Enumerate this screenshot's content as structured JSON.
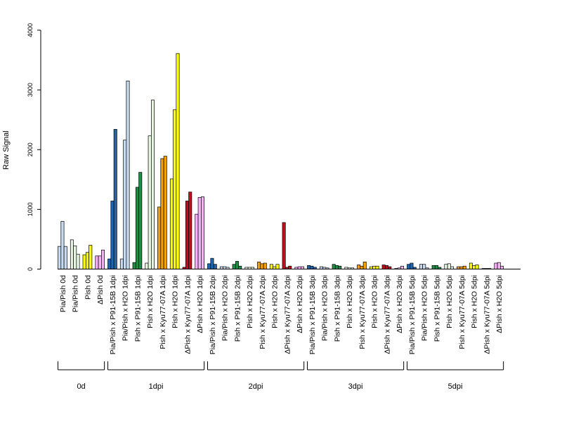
{
  "chart_data": {
    "type": "bar",
    "ylabel": "Raw Signal",
    "ylim": [
      0,
      4000
    ],
    "yticks": [
      0,
      1000,
      2000,
      3000,
      4000
    ],
    "grid": false,
    "colors": {
      "Pia/Pish": "#c6dbef",
      "Pia/Pish x P91-15B": "#2166ac",
      "Pia/Pish x H2O": "#c6dbef",
      "Pish x P91-15B": "#238b45",
      "Pish x H2O": "#e5f5e0",
      "Pish x Kyu77-07A": "#f5a000",
      "Pish": "#ffff00",
      "ΔPish x Kyu77-07A": "#cc0a1e",
      "ΔPish x H2O": "#f7b2f5",
      "ΔPish": "#f7b2f5"
    },
    "categories": [
      "Pia/Pish 0d",
      "Pia/Pish 0d",
      "Pish 0d",
      "ΔPish 0d",
      "Pia/Pish x P91-15B 1dpi",
      "Pia/Pish x H2O 1dpi",
      "Pish x P91-15B 1dpi",
      "Pish x H2O 1dpi",
      "Pish x Kyu77-07A 1dpi",
      "Pish x H2O 1dpi",
      "ΔPish x Kyu77-07A 1dpi",
      "ΔPish x H2O 1dpi",
      "Pia/Pish x P91-15B 2dpi",
      "Pia/Pish x H2O 2dpi",
      "Pish x P91-15B 2dpi",
      "Pish x H2O 2dpi",
      "Pish x Kyu77-07A 2dpi",
      "Pish x H2O 2dpi",
      "ΔPish x Kyu77-07A 2dpi",
      "ΔPish x H2O 2dpi",
      "Pia/Pish x P91-15B 3dpi",
      "Pia/Pish x H2O 3dpi",
      "Pish x P91-15B 3dpi",
      "Pish x H2O 3dpi",
      "Pish x Kyu77-07A 3dpi",
      "Pish x H2O 3dpi",
      "ΔPish x Kyu77-07A 3dpi",
      "ΔPish x H2O 3dpi",
      "Pia/Pish x P91-15B 5dpi",
      "Pia/Pish x H2O 5dpi",
      "Pish x P91-15B 5dpi",
      "Pish x H2O 5dpi",
      "Pish x Kyu77-07A 5dpi",
      "Pish x H2O 5dpi",
      "ΔPish x Kyu77-07A 5dpi",
      "ΔPish x H2O 5dpi"
    ],
    "groups": [
      {
        "label": "0d",
        "from": 0,
        "to": 3
      },
      {
        "label": "1dpi",
        "from": 4,
        "to": 11
      },
      {
        "label": "2dpi",
        "from": 12,
        "to": 19
      },
      {
        "label": "3dpi",
        "from": 20,
        "to": 27
      },
      {
        "label": "5dpi",
        "from": 28,
        "to": 35
      }
    ],
    "bars": [
      {
        "color": "#c6dbef",
        "values": [
          380,
          800,
          380
        ]
      },
      {
        "color": "#e5f5e0",
        "values": [
          490,
          390,
          250
        ]
      },
      {
        "color": "#ffff00",
        "values": [
          240,
          280,
          400
        ]
      },
      {
        "color": "#f7b2f5",
        "values": [
          220,
          220,
          320
        ]
      },
      {
        "color": "#2166ac",
        "values": [
          170,
          1140,
          2340
        ]
      },
      {
        "color": "#c6dbef",
        "values": [
          170,
          2160,
          3150
        ]
      },
      {
        "color": "#238b45",
        "values": [
          110,
          1370,
          1620
        ]
      },
      {
        "color": "#e5f5e0",
        "values": [
          100,
          2230,
          2830
        ]
      },
      {
        "color": "#f5a000",
        "values": [
          1040,
          1850,
          1890
        ]
      },
      {
        "color": "#ffff00",
        "values": [
          1510,
          2670,
          3610
        ]
      },
      {
        "color": "#cc0a1e",
        "values": [
          30,
          1140,
          1290
        ]
      },
      {
        "color": "#f7b2f5",
        "values": [
          920,
          1200,
          1210
        ]
      },
      {
        "color": "#2166ac",
        "values": [
          90,
          180,
          80
        ]
      },
      {
        "color": "#c6dbef",
        "values": [
          40,
          40,
          30
        ]
      },
      {
        "color": "#238b45",
        "values": [
          80,
          130,
          50
        ]
      },
      {
        "color": "#e5f5e0",
        "values": [
          30,
          30,
          30
        ]
      },
      {
        "color": "#f5a000",
        "values": [
          120,
          90,
          100
        ]
      },
      {
        "color": "#ffff00",
        "values": [
          80,
          40,
          80
        ]
      },
      {
        "color": "#cc0a1e",
        "values": [
          780,
          30,
          50
        ]
      },
      {
        "color": "#f7b2f5",
        "values": [
          30,
          40,
          40
        ]
      },
      {
        "color": "#2166ac",
        "values": [
          60,
          50,
          30
        ]
      },
      {
        "color": "#c6dbef",
        "values": [
          40,
          30,
          20
        ]
      },
      {
        "color": "#238b45",
        "values": [
          80,
          60,
          50
        ]
      },
      {
        "color": "#e5f5e0",
        "values": [
          30,
          20,
          20
        ]
      },
      {
        "color": "#f5a000",
        "values": [
          70,
          50,
          120
        ]
      },
      {
        "color": "#ffff00",
        "values": [
          40,
          50,
          50
        ]
      },
      {
        "color": "#cc0a1e",
        "values": [
          70,
          60,
          40
        ]
      },
      {
        "color": "#f7b2f5",
        "values": [
          10,
          20,
          50
        ]
      },
      {
        "color": "#2166ac",
        "values": [
          80,
          100,
          30
        ]
      },
      {
        "color": "#c6dbef",
        "values": [
          80,
          80,
          20
        ]
      },
      {
        "color": "#238b45",
        "values": [
          60,
          60,
          30
        ]
      },
      {
        "color": "#e5f5e0",
        "values": [
          80,
          90,
          40
        ]
      },
      {
        "color": "#f5a000",
        "values": [
          40,
          40,
          50
        ]
      },
      {
        "color": "#ffff00",
        "values": [
          100,
          60,
          70
        ]
      },
      {
        "color": "#cc0a1e",
        "values": [
          10,
          10,
          10
        ]
      },
      {
        "color": "#f7b2f5",
        "values": [
          100,
          110,
          50
        ]
      }
    ]
  }
}
